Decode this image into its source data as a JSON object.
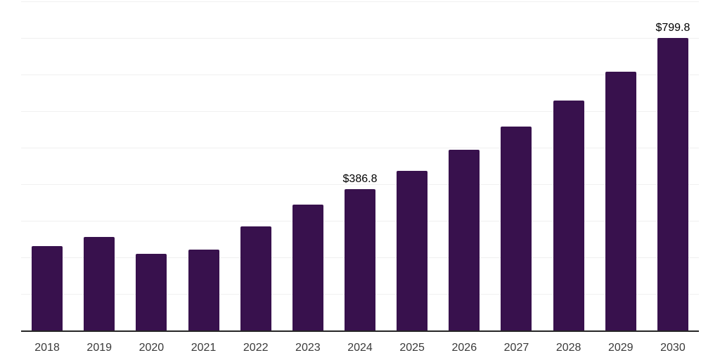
{
  "chart_data": {
    "type": "bar",
    "title": "",
    "categories": [
      "2018",
      "2019",
      "2020",
      "2021",
      "2022",
      "2023",
      "2024",
      "2025",
      "2026",
      "2027",
      "2028",
      "2029",
      "2030"
    ],
    "values": [
      230,
      255,
      210,
      221,
      284,
      344,
      386.8,
      436,
      494,
      557,
      628,
      707,
      799.8
    ],
    "data_labels": {
      "2024": "$386.8",
      "2030": "$799.8"
    },
    "xlabel": "",
    "ylabel": "",
    "ylim": [
      0,
      900
    ],
    "gridline_step": 100,
    "grid": "horizontal",
    "y_tick_labels_visible": false,
    "legend_position": "none",
    "value_prefix": "$"
  },
  "colors": {
    "bar": "#38114d",
    "gridline": "#f0f0f0",
    "axis_line": "#262626",
    "tick_label": "#3a3a3a",
    "data_label": "#000000",
    "background": "#ffffff"
  }
}
